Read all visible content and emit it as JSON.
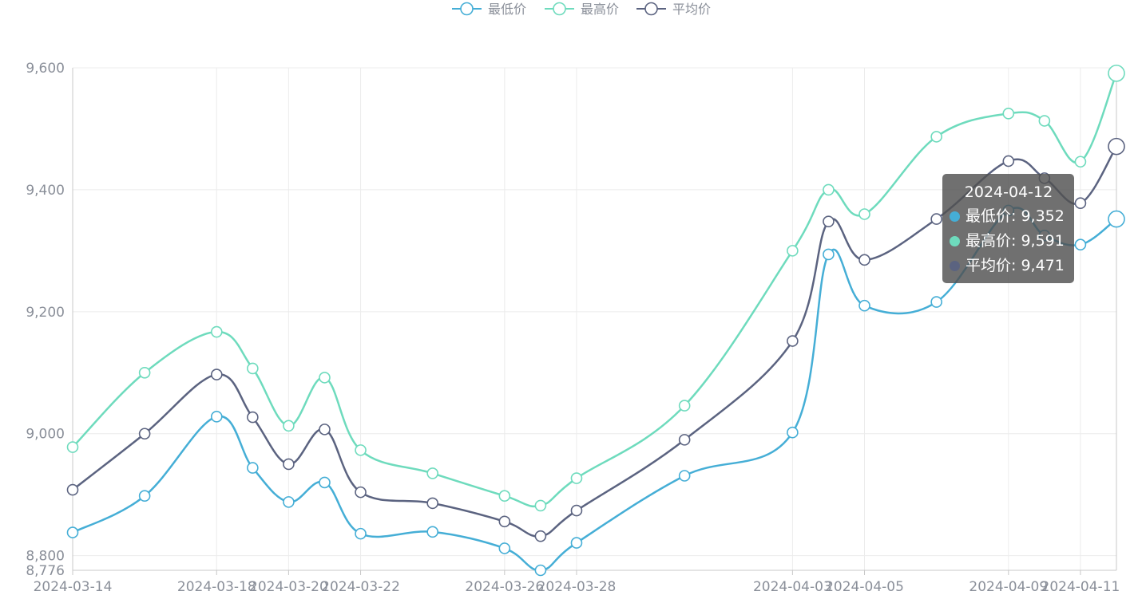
{
  "chart_data": {
    "type": "line",
    "smooth": true,
    "x": [
      "2024-03-14",
      "2024-03-16",
      "2024-03-18",
      "2024-03-19",
      "2024-03-20",
      "2024-03-21",
      "2024-03-22",
      "2024-03-24",
      "2024-03-26",
      "2024-03-27",
      "2024-03-28",
      "2024-03-31",
      "2024-04-03",
      "2024-04-04",
      "2024-04-05",
      "2024-04-07",
      "2024-04-09",
      "2024-04-10",
      "2024-04-11",
      "2024-04-12"
    ],
    "x_tick_labels": [
      "2024-03-14",
      "2024-03-18",
      "2024-03-20",
      "2024-03-22",
      "2024-03-26",
      "2024-03-28",
      "2024-04-03",
      "2024-04-05",
      "2024-04-09",
      "2024-04-11"
    ],
    "ylim": [
      8776,
      9600
    ],
    "y_ticks": [
      8776,
      8800,
      9000,
      9200,
      9400,
      9600
    ],
    "y_tick_labels": [
      "8,776",
      "8,800",
      "9,000",
      "9,200",
      "9,400",
      "9,600"
    ],
    "grid": true,
    "legend_position": "top-center",
    "series": [
      {
        "name": "最低价",
        "color": "#45aed6",
        "values": [
          8838,
          8898,
          9028,
          8944,
          8888,
          8920,
          8836,
          8839,
          8812,
          8776,
          8821,
          8931,
          9002,
          9294,
          9210,
          9216,
          9366,
          9325,
          9310,
          9352
        ]
      },
      {
        "name": "最高价",
        "color": "#6edbbd",
        "values": [
          8978,
          9100,
          9167,
          9107,
          9013,
          9092,
          8973,
          8935,
          8898,
          8882,
          8927,
          9046,
          9300,
          9400,
          9360,
          9487,
          9525,
          9513,
          9446,
          9591
        ]
      },
      {
        "name": "平均价",
        "color": "#5b6380",
        "values": [
          8908,
          9000,
          9097,
          9027,
          8950,
          9007,
          8904,
          8886,
          8856,
          8832,
          8874,
          8990,
          9152,
          9348,
          9285,
          9352,
          9447,
          9419,
          9378,
          9471
        ]
      }
    ]
  },
  "tooltip": {
    "date": "2024-04-12",
    "rows": [
      {
        "label": "最低价: 9,352",
        "color": "#45aed6"
      },
      {
        "label": "最高价: 9,591",
        "color": "#6edbbd"
      },
      {
        "label": "平均价: 9,471",
        "color": "#5b6380"
      }
    ]
  }
}
